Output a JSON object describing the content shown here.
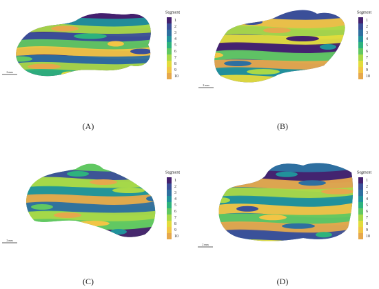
{
  "panels": [
    {
      "caption": "(A)",
      "legend_title": "Segment",
      "legend_labels": [
        1,
        2,
        3,
        4,
        5,
        6,
        7,
        8,
        9,
        10
      ],
      "scale_label": "2 mm"
    },
    {
      "caption": "(B)",
      "legend_title": "Segment",
      "legend_labels": [
        1,
        2,
        3,
        4,
        5,
        6,
        7,
        8,
        9,
        10
      ],
      "scale_label": "2 mm"
    },
    {
      "caption": "(C)",
      "legend_title": "Segment",
      "legend_labels": [
        1,
        2,
        3,
        4,
        5,
        6,
        7,
        8,
        9,
        10
      ],
      "scale_label": "2 mm"
    },
    {
      "caption": "(D)",
      "legend_title": "Segment",
      "legend_labels": [
        1,
        2,
        3,
        4,
        5,
        6,
        7,
        8,
        9,
        10
      ],
      "scale_label": "2 mm"
    }
  ],
  "colors": [
    "#44206e",
    "#3b4f99",
    "#2e6fa0",
    "#21929b",
    "#2db37d",
    "#61c862",
    "#a9d948",
    "#e3dc3c",
    "#f2c545",
    "#e6a84c"
  ]
}
